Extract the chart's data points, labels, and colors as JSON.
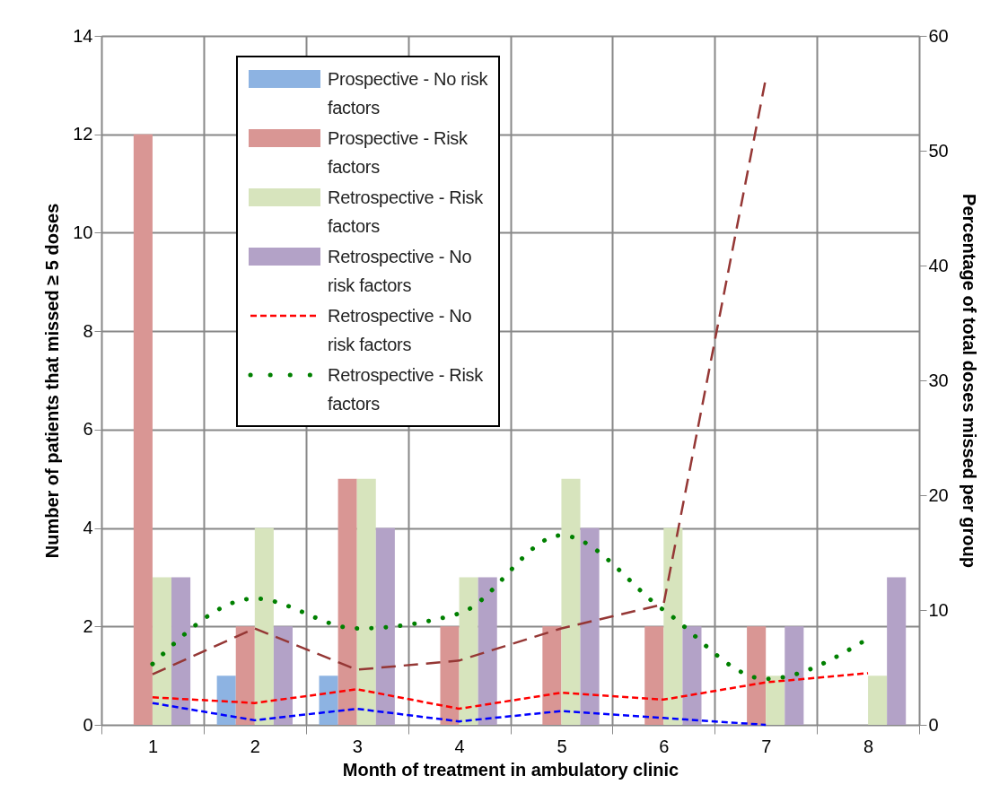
{
  "chart_data": {
    "type": "bar",
    "categories": [
      "1",
      "2",
      "3",
      "4",
      "5",
      "6",
      "7",
      "8"
    ],
    "xlabel": "Month of treatment in ambulatory clinic",
    "ylabel": "Number of patients that missed ≥ 5 doses",
    "y2label": "Percentage of total doses missed per group",
    "ylim": [
      0,
      14
    ],
    "yticks": [
      0,
      2,
      4,
      6,
      8,
      10,
      12,
      14
    ],
    "y2lim": [
      0,
      60
    ],
    "y2ticks": [
      0,
      10,
      20,
      30,
      40,
      50,
      60
    ],
    "grid": true,
    "legend": "top left",
    "series": [
      {
        "name": "Prospective - No risk factors",
        "color": "#8db3e2",
        "values": [
          0,
          1,
          1,
          0,
          0,
          0,
          0,
          0
        ]
      },
      {
        "name": "Prospective - Risk factors",
        "color": "#d99694",
        "values": [
          12,
          2,
          5,
          2,
          2,
          2,
          2,
          0
        ]
      },
      {
        "name": "Retrospective - Risk factors",
        "color": "#d7e4bd",
        "values": [
          3,
          4,
          5,
          3,
          5,
          4,
          1,
          1
        ]
      },
      {
        "name": "Retrospective - No risk factors",
        "color": "#b3a2c7",
        "values": [
          3,
          2,
          4,
          3,
          4,
          2,
          2,
          3
        ]
      },
      {
        "type": "line",
        "axis": "y2",
        "line_style": "dashed",
        "color": "#953735",
        "values": [
          4.4,
          8.4,
          4.8,
          5.6,
          8.4,
          10.5,
          56.3,
          null
        ]
      },
      {
        "name": "Retrospective - No risk factors",
        "type": "line",
        "axis": "y2",
        "line_style": "dashed",
        "color": "#ff0000",
        "values": [
          2.4,
          1.9,
          3.1,
          1.4,
          2.8,
          2.2,
          3.7,
          4.5
        ]
      },
      {
        "type": "line",
        "axis": "y2",
        "line_style": "dashed",
        "color": "#0000ff",
        "values": [
          1.9,
          0.4,
          1.4,
          0.3,
          1.2,
          0.6,
          0,
          null
        ]
      },
      {
        "name": "Retrospective - Risk factors",
        "type": "line",
        "axis": "y2",
        "line_style": "dotted",
        "color": "#008000",
        "values": [
          5.3,
          11.0,
          8.4,
          9.7,
          16.5,
          10.0,
          4.0,
          7.5
        ]
      }
    ]
  }
}
